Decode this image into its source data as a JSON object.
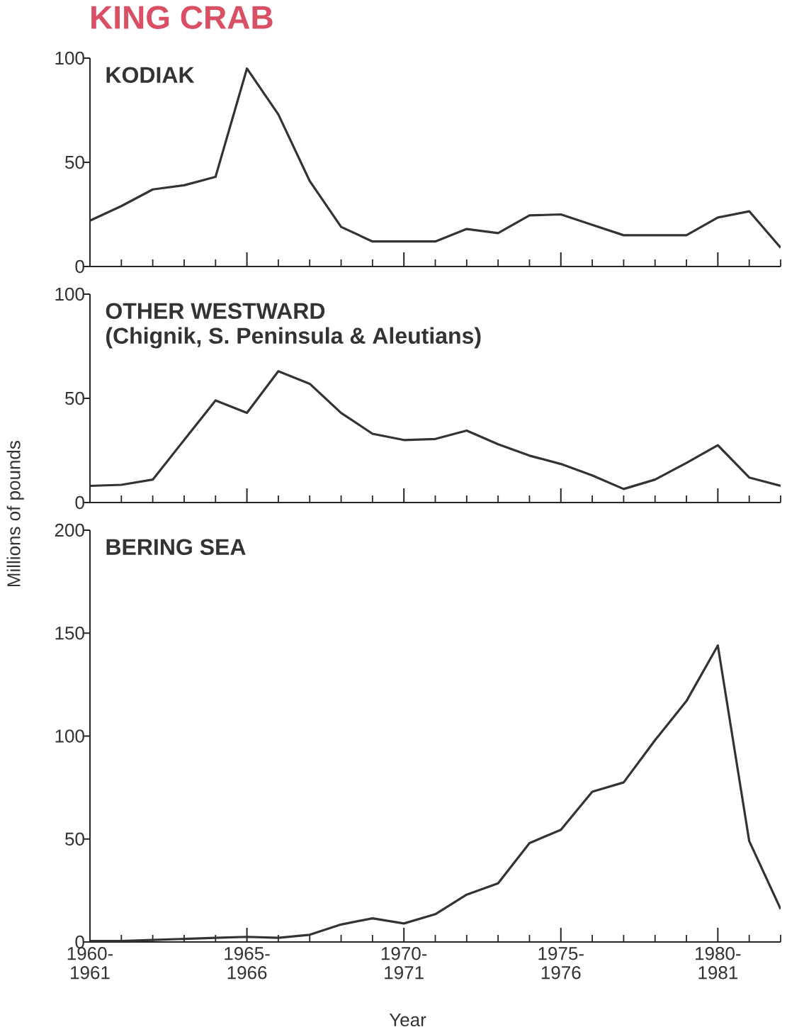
{
  "chart_data": [
    {
      "type": "line",
      "title": "KING CRAB",
      "categories": [
        null,
        null,
        null,
        null,
        null,
        null,
        null,
        null,
        null,
        null,
        null,
        null,
        null,
        null,
        null,
        null,
        null,
        null,
        null,
        null,
        null,
        null,
        null
      ],
      "series": [
        {
          "name": "KODIAK",
          "color": "#333333",
          "values": [
            22,
            29,
            37,
            39,
            43,
            95,
            73,
            41,
            19,
            12,
            12,
            12,
            18,
            16,
            24.5,
            25,
            20,
            15,
            15,
            15,
            23.5,
            26.5,
            9
          ]
        }
      ],
      "ylim": [
        0,
        100
      ],
      "yticks": [
        0,
        50,
        100
      ]
    },
    {
      "type": "line",
      "ylabel": "Millions of pounds",
      "annotations": [
        "(Chignik, S. Peninsula & Aleutians)"
      ],
      "categories": [
        null,
        null,
        null,
        null,
        null,
        null,
        null,
        null,
        null,
        null,
        null,
        null,
        null,
        null,
        null,
        null,
        null,
        null,
        null,
        null,
        null,
        null,
        null
      ],
      "series": [
        {
          "name": "OTHER WESTWARD",
          "color": "#333333",
          "values": [
            8,
            8.5,
            11,
            30,
            49,
            43,
            63,
            57,
            43,
            33,
            30,
            30.5,
            34.5,
            28,
            22.5,
            18.5,
            13,
            6.5,
            11,
            19,
            27.5,
            12,
            8
          ]
        }
      ],
      "ylim": [
        0,
        100
      ],
      "yticks": [
        0,
        50,
        100
      ]
    },
    {
      "type": "line",
      "xlabel": "Year",
      "categories": [
        "1960-1961",
        null,
        null,
        null,
        null,
        "1965-1966",
        null,
        null,
        null,
        null,
        "1970-1971",
        null,
        null,
        null,
        null,
        "1975-1976",
        null,
        null,
        null,
        null,
        "1980-1981",
        null,
        null
      ],
      "series": [
        {
          "name": "BERING SEA",
          "color": "#333333",
          "values": [
            0.5,
            0.5,
            1,
            1.5,
            2,
            2.5,
            2,
            3.5,
            8.5,
            11.5,
            9,
            13.5,
            23,
            28.5,
            48,
            54.5,
            73,
            77.5,
            98,
            117,
            144,
            49,
            16
          ]
        }
      ],
      "ylim": [
        0,
        200
      ],
      "yticks": [
        0,
        50,
        100,
        150,
        200
      ]
    }
  ]
}
